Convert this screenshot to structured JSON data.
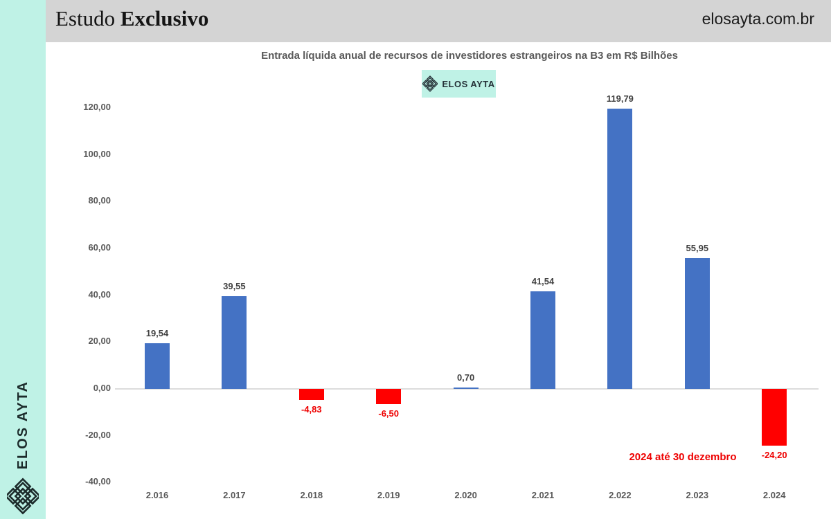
{
  "header": {
    "brand_regular": "Estudo",
    "brand_bold": "Exclusivo",
    "site": "elosayta.com.br"
  },
  "sidebar": {
    "vertical_text": "ELOS AYTA",
    "logo_icon": "woven-diamond-icon"
  },
  "badge": {
    "label": "ELOS AYTA",
    "icon": "woven-diamond-icon"
  },
  "chart_data": {
    "type": "bar",
    "title": "Entrada líquida anual de recursos de investidores estrangeiros na B3 em R$ Bilhões",
    "categories": [
      "2.016",
      "2.017",
      "2.018",
      "2.019",
      "2.020",
      "2.021",
      "2.022",
      "2.023",
      "2.024"
    ],
    "values": [
      19.54,
      39.55,
      -4.83,
      -6.5,
      0.7,
      41.54,
      119.79,
      55.95,
      -24.2
    ],
    "value_labels": [
      "19,54",
      "39,55",
      "-4,83",
      "-6,50",
      "0,70",
      "41,54",
      "119,79",
      "55,95",
      "-24,20"
    ],
    "yticks": [
      120,
      100,
      80,
      60,
      40,
      20,
      0,
      -20,
      -40
    ],
    "ytick_labels": [
      "120,00",
      "100,00",
      "80,00",
      "60,00",
      "40,00",
      "20,00",
      "0,00",
      "-20,00",
      "-40,00"
    ],
    "ylim": [
      -40,
      130
    ],
    "grid": "zero-line-only",
    "legend": "none",
    "annotation": "2024 até 30 dezembro",
    "xlabel": "",
    "ylabel": "",
    "colors": {
      "positive_bar": "#4472C4",
      "negative_bar": "#FF0000",
      "positive_label": "#404040",
      "negative_label": "#EE0000",
      "axis_text": "#595959",
      "zero_line": "#DCDCDC"
    }
  },
  "theme": {
    "mint": "#BFF2E6",
    "header_gray": "#D4D4D4",
    "title_gray": "#595959"
  }
}
